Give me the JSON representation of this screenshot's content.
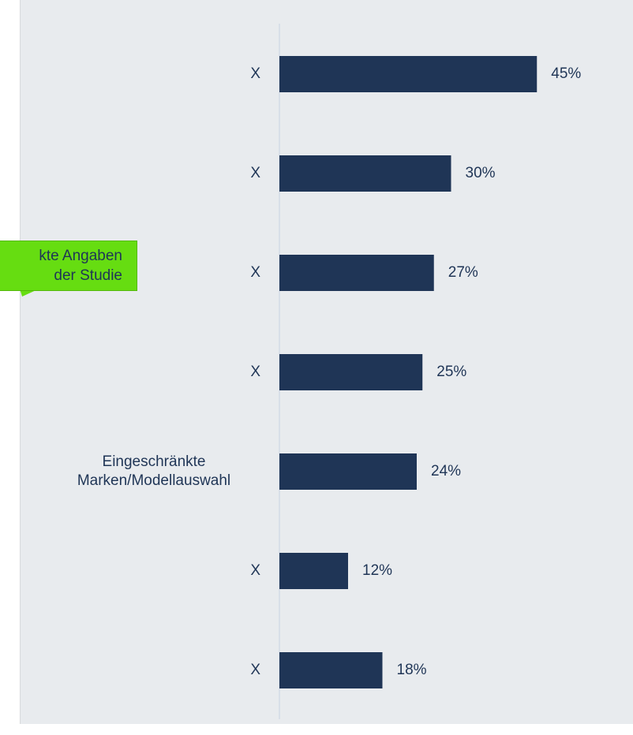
{
  "chart_data": {
    "type": "hbar",
    "categories": [
      "X",
      "X",
      "X",
      "X",
      "Eingeschränkte Marken/Modellauswahl",
      "X",
      "X"
    ],
    "values": [
      45,
      30,
      27,
      25,
      24,
      12,
      18
    ],
    "value_labels": [
      "45%",
      "30%",
      "27%",
      "25%",
      "24%",
      "12%",
      "18%"
    ],
    "color": "#1f3556",
    "xlim": [
      0,
      60
    ],
    "annotation": {
      "lines": [
        "kte Angaben",
        "der Studie"
      ],
      "color": "#66dd11"
    }
  }
}
